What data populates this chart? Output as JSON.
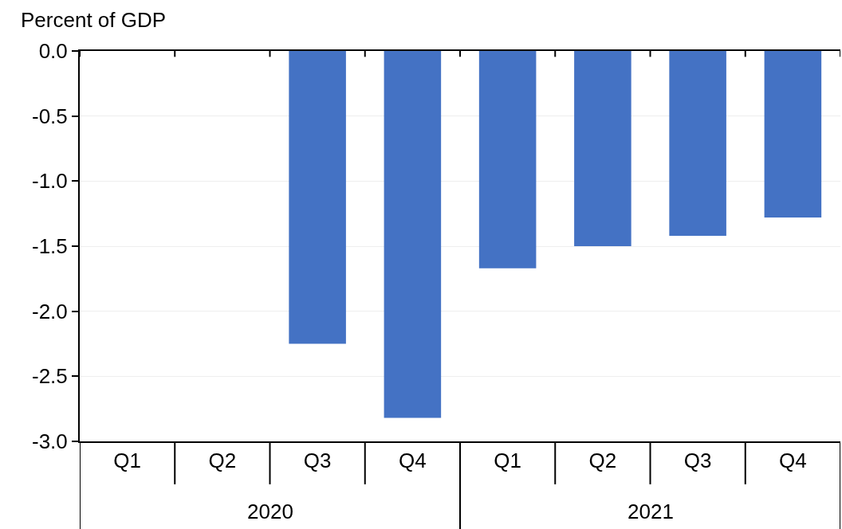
{
  "chart_data": {
    "type": "bar",
    "ylabel": "Percent of GDP",
    "categories": [
      "Q1",
      "Q2",
      "Q3",
      "Q4",
      "Q1",
      "Q2",
      "Q3",
      "Q4"
    ],
    "annotations": [
      "2020",
      "2021"
    ],
    "values": [
      null,
      null,
      -2.25,
      -2.82,
      -1.67,
      -1.5,
      -1.42,
      -1.28
    ],
    "color": "#4472c4",
    "ylim": [
      -3.0,
      0.0
    ],
    "yticks": [
      {
        "value": -3.0,
        "label": "-3.0"
      },
      {
        "value": -2.5,
        "label": "-2.5"
      },
      {
        "value": -2.0,
        "label": "-2.0"
      },
      {
        "value": -1.5,
        "label": "-1.5"
      },
      {
        "value": -1.0,
        "label": "-1.0"
      },
      {
        "value": -0.5,
        "label": "-0.5"
      },
      {
        "value": 0.0,
        "label": "0.0"
      }
    ],
    "grid": "y",
    "legend": false
  }
}
